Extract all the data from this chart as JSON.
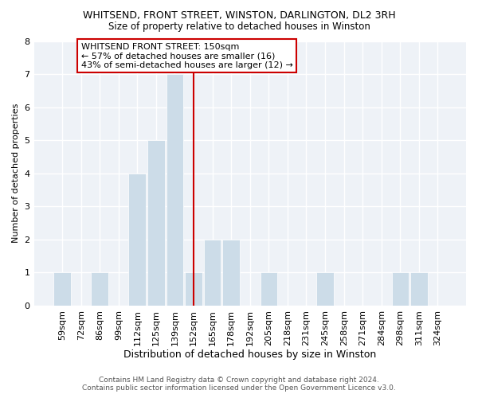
{
  "title": "WHITSEND, FRONT STREET, WINSTON, DARLINGTON, DL2 3RH",
  "subtitle": "Size of property relative to detached houses in Winston",
  "xlabel": "Distribution of detached houses by size in Winston",
  "ylabel": "Number of detached properties",
  "categories": [
    "59sqm",
    "72sqm",
    "86sqm",
    "99sqm",
    "112sqm",
    "125sqm",
    "139sqm",
    "152sqm",
    "165sqm",
    "178sqm",
    "192sqm",
    "205sqm",
    "218sqm",
    "231sqm",
    "245sqm",
    "258sqm",
    "271sqm",
    "284sqm",
    "298sqm",
    "311sqm",
    "324sqm"
  ],
  "values": [
    1,
    0,
    1,
    0,
    4,
    5,
    7,
    1,
    2,
    2,
    0,
    1,
    0,
    0,
    1,
    0,
    0,
    0,
    1,
    1,
    0
  ],
  "bar_color": "#ccdce8",
  "bar_edge_color": "#ffffff",
  "reference_line_x": 7,
  "reference_line_color": "#cc0000",
  "ylim": [
    0,
    8
  ],
  "yticks": [
    0,
    1,
    2,
    3,
    4,
    5,
    6,
    7,
    8
  ],
  "annotation_title": "WHITSEND FRONT STREET: 150sqm",
  "annotation_line1": "← 57% of detached houses are smaller (16)",
  "annotation_line2": "43% of semi-detached houses are larger (12) →",
  "annotation_box_color": "#ffffff",
  "annotation_box_edge_color": "#cc0000",
  "footer_line1": "Contains HM Land Registry data © Crown copyright and database right 2024.",
  "footer_line2": "Contains public sector information licensed under the Open Government Licence v3.0.",
  "bg_color": "#ffffff",
  "plot_bg_color": "#eef2f7"
}
